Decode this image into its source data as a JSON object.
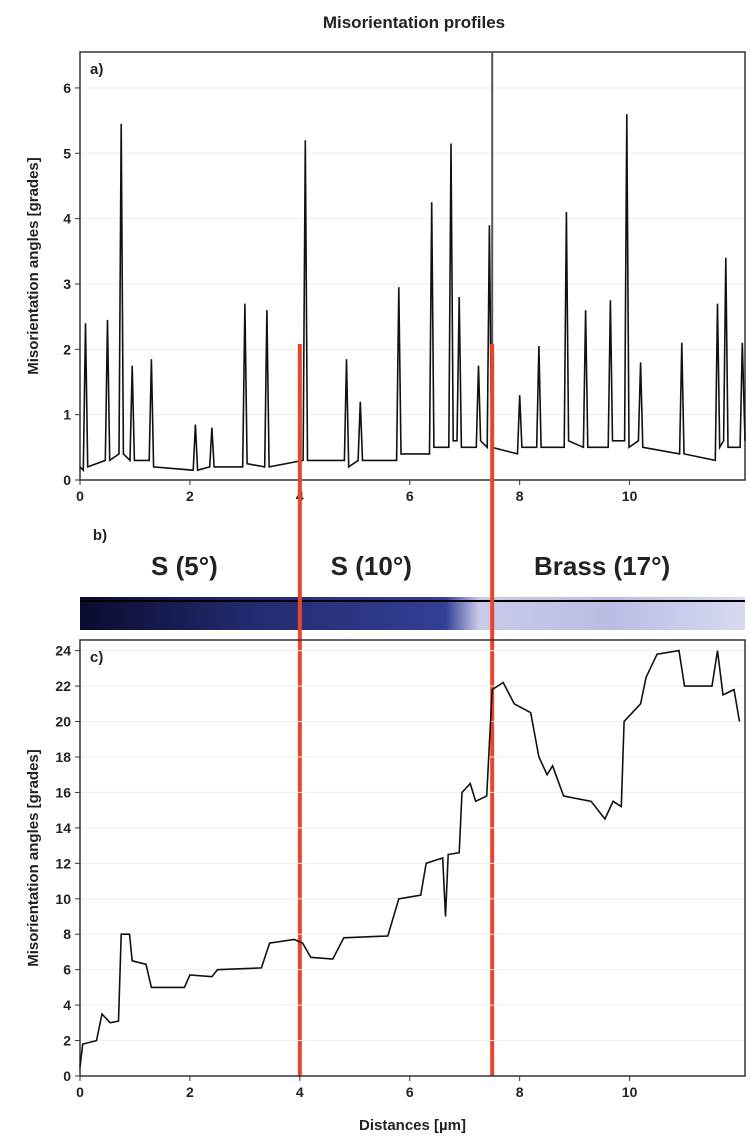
{
  "chart_data": [
    {
      "type": "line",
      "title": "Misorientation profiles",
      "panel_label": "a)",
      "y_label": "Misorientation angles [grades]",
      "xlim": [
        0,
        12.1
      ],
      "xticks": [
        0,
        2,
        4,
        6,
        8,
        10
      ],
      "ylim": [
        0,
        6.55
      ],
      "yticks": [
        0,
        1,
        2,
        3,
        4,
        5,
        6
      ],
      "marker_x": 7.5,
      "marker_color": "#555555",
      "color": "#111111",
      "x": [
        0,
        0.06,
        0.1,
        0.14,
        0.46,
        0.5,
        0.54,
        0.71,
        0.75,
        0.79,
        0.91,
        0.95,
        0.99,
        1.26,
        1.3,
        1.34,
        2.06,
        2.1,
        2.14,
        2.36,
        2.4,
        2.44,
        2.96,
        3.0,
        3.04,
        3.36,
        3.4,
        3.44,
        4.06,
        4.1,
        4.14,
        4.81,
        4.85,
        4.89,
        5.06,
        5.1,
        5.14,
        5.76,
        5.8,
        5.84,
        6.36,
        6.4,
        6.44,
        6.71,
        6.75,
        6.79,
        6.86,
        6.9,
        6.94,
        7.21,
        7.25,
        7.29,
        7.41,
        7.45,
        7.49,
        7.96,
        8.0,
        8.04,
        8.31,
        8.35,
        8.39,
        8.81,
        8.85,
        8.89,
        9.16,
        9.2,
        9.24,
        9.61,
        9.65,
        9.69,
        9.91,
        9.95,
        9.99,
        10.16,
        10.2,
        10.24,
        10.91,
        10.95,
        10.99,
        11.56,
        11.6,
        11.64,
        11.71,
        11.75,
        11.79,
        12.01,
        12.05,
        12.1
      ],
      "values": [
        0.2,
        0.15,
        2.4,
        0.2,
        0.3,
        2.45,
        0.3,
        0.4,
        5.45,
        0.4,
        0.3,
        1.75,
        0.3,
        0.3,
        1.85,
        0.2,
        0.15,
        0.85,
        0.15,
        0.2,
        0.8,
        0.2,
        0.2,
        2.7,
        0.25,
        0.2,
        2.6,
        0.2,
        0.3,
        5.2,
        0.3,
        0.3,
        1.85,
        0.2,
        0.3,
        1.2,
        0.3,
        0.3,
        2.95,
        0.4,
        0.4,
        4.25,
        0.5,
        0.5,
        5.15,
        0.6,
        0.6,
        2.8,
        0.5,
        0.5,
        1.75,
        0.6,
        0.5,
        3.9,
        0.5,
        0.4,
        1.3,
        0.5,
        0.5,
        2.05,
        0.5,
        0.5,
        4.1,
        0.6,
        0.5,
        2.6,
        0.5,
        0.5,
        2.75,
        0.6,
        0.6,
        5.6,
        0.5,
        0.6,
        1.8,
        0.5,
        0.4,
        2.1,
        0.4,
        0.3,
        2.7,
        0.5,
        0.6,
        3.4,
        0.5,
        0.5,
        2.1,
        0.6
      ]
    },
    {
      "type": "strip",
      "panel_label": "b)",
      "labels": [
        "S (5°)",
        "S (10°)",
        "Brass (17°)"
      ],
      "label_x": [
        1.9,
        5.3,
        9.5
      ],
      "boundaries": [
        4,
        7.5
      ],
      "boundary_color": "#e8452c",
      "xlim": [
        0,
        12.1
      ]
    },
    {
      "type": "line",
      "panel_label": "c)",
      "y_label": "Misorientation angles [grades]",
      "x_label": "Distances [µm]",
      "xlim": [
        0,
        12.1
      ],
      "xticks": [
        0,
        2,
        4,
        6,
        8,
        10
      ],
      "ylim": [
        0,
        24.6
      ],
      "yticks": [
        0,
        2,
        4,
        6,
        8,
        10,
        12,
        14,
        16,
        18,
        20,
        22,
        24
      ],
      "color": "#111111",
      "x": [
        0,
        0.05,
        0.3,
        0.4,
        0.55,
        0.7,
        0.75,
        0.9,
        0.95,
        1.2,
        1.3,
        1.9,
        2.0,
        2.4,
        2.5,
        3.3,
        3.45,
        3.9,
        4.05,
        4.2,
        4.6,
        4.8,
        5.6,
        5.8,
        6.2,
        6.3,
        6.6,
        6.65,
        6.7,
        6.9,
        6.95,
        7.1,
        7.2,
        7.4,
        7.5,
        7.7,
        7.9,
        8.2,
        8.35,
        8.5,
        8.6,
        8.8,
        9.3,
        9.55,
        9.7,
        9.85,
        9.9,
        10.2,
        10.3,
        10.5,
        10.9,
        11.0,
        11.5,
        11.6,
        11.7,
        11.9,
        12.0
      ],
      "values": [
        0.5,
        1.8,
        2,
        3.5,
        3,
        3.1,
        8,
        8,
        6.5,
        6.3,
        5,
        5,
        5.7,
        5.6,
        6,
        6.1,
        7.5,
        7.7,
        7.5,
        6.7,
        6.6,
        7.8,
        7.9,
        10,
        10.2,
        12,
        12.3,
        9,
        12.5,
        12.6,
        16,
        16.5,
        15.5,
        15.8,
        21.8,
        22.2,
        21,
        20.5,
        18,
        17,
        17.5,
        15.8,
        15.5,
        14.5,
        15.5,
        15.2,
        20,
        21,
        22.5,
        23.8,
        24,
        22,
        22,
        24,
        21.5,
        21.8,
        20
      ]
    }
  ]
}
